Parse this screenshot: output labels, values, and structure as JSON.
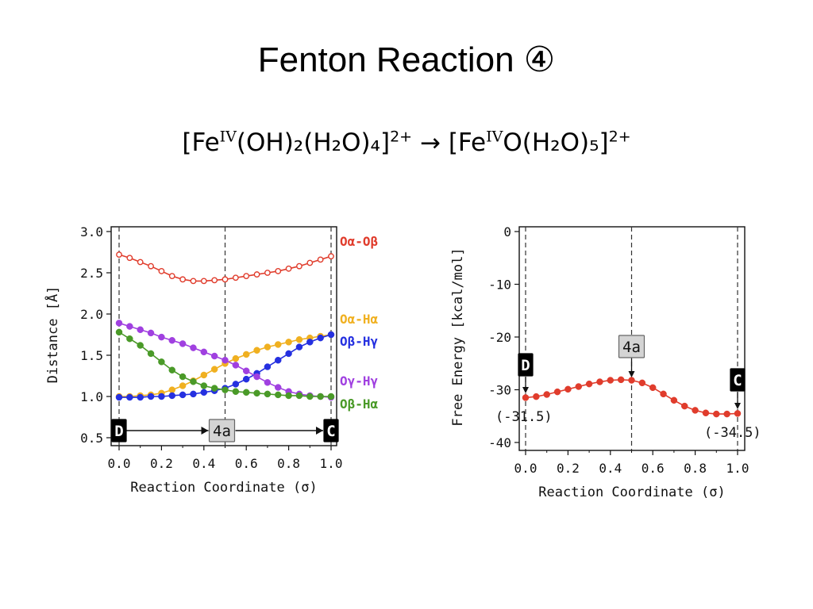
{
  "slide": {
    "title": "Fenton Reaction ④",
    "reaction": {
      "reactant": {
        "pre": "[Fe",
        "ox": "IV",
        "mid": "(OH)₂(H₂O)₄]",
        "charge": "2+"
      },
      "arrow": "→",
      "product": {
        "pre": "[Fe",
        "ox": "IV",
        "mid": "O(H₂O)₅]",
        "charge": "2+"
      }
    }
  },
  "chart_data": [
    {
      "type": "line",
      "xlabel": "Reaction Coordinate (σ)",
      "ylabel": "Distance [Å]",
      "xlim": [
        0,
        1
      ],
      "ylim": [
        0.5,
        3.0
      ],
      "x_ticks": [
        "0.0",
        "0.2",
        "0.4",
        "0.6",
        "0.8",
        "1.0"
      ],
      "y_ticks": [
        "0.5",
        "1.0",
        "1.5",
        "2.0",
        "2.5",
        "3.0"
      ],
      "grid": false,
      "legend": "right",
      "x": [
        0,
        0.05,
        0.1,
        0.15,
        0.2,
        0.25,
        0.3,
        0.35,
        0.4,
        0.45,
        0.5,
        0.55,
        0.6,
        0.65,
        0.7,
        0.75,
        0.8,
        0.85,
        0.9,
        0.95,
        1.0
      ],
      "series": [
        {
          "name": "Oα-Oβ",
          "color": "#e03c2c",
          "marker": "open-circle",
          "values": [
            2.72,
            2.68,
            2.63,
            2.58,
            2.52,
            2.46,
            2.42,
            2.4,
            2.4,
            2.41,
            2.42,
            2.44,
            2.46,
            2.48,
            2.5,
            2.52,
            2.55,
            2.58,
            2.62,
            2.66,
            2.7
          ]
        },
        {
          "name": "Oα-Hα",
          "color": "#f0b020",
          "marker": "filled-circle",
          "values": [
            1.0,
            1.0,
            1.01,
            1.02,
            1.04,
            1.08,
            1.13,
            1.19,
            1.26,
            1.33,
            1.4,
            1.46,
            1.51,
            1.56,
            1.6,
            1.63,
            1.66,
            1.69,
            1.71,
            1.73,
            1.75
          ]
        },
        {
          "name": "Oβ-Hγ",
          "color": "#2530e0",
          "marker": "filled-circle",
          "values": [
            0.99,
            0.99,
            0.99,
            1.0,
            1.0,
            1.01,
            1.02,
            1.03,
            1.05,
            1.07,
            1.1,
            1.15,
            1.21,
            1.28,
            1.36,
            1.44,
            1.52,
            1.6,
            1.66,
            1.71,
            1.75
          ]
        },
        {
          "name": "Oγ-Hγ",
          "color": "#a040e0",
          "marker": "filled-circle",
          "values": [
            1.89,
            1.85,
            1.81,
            1.77,
            1.72,
            1.68,
            1.64,
            1.59,
            1.54,
            1.49,
            1.44,
            1.38,
            1.31,
            1.24,
            1.17,
            1.11,
            1.06,
            1.03,
            1.01,
            1.0,
            0.99
          ]
        },
        {
          "name": "Oβ-Hα",
          "color": "#4a9a28",
          "marker": "filled-circle",
          "values": [
            1.78,
            1.7,
            1.62,
            1.52,
            1.42,
            1.32,
            1.24,
            1.18,
            1.13,
            1.1,
            1.08,
            1.06,
            1.05,
            1.04,
            1.03,
            1.02,
            1.01,
            1.01,
            1.0,
            1.0,
            1.0
          ]
        }
      ],
      "markers": [
        {
          "label": "D",
          "x": 0.0,
          "style": "black"
        },
        {
          "label": "4a",
          "x": 0.5,
          "style": "gray"
        },
        {
          "label": "C",
          "x": 1.0,
          "style": "black"
        }
      ]
    },
    {
      "type": "line",
      "xlabel": "Reaction Coordinate (σ)",
      "ylabel": "Free Energy [kcal/mol]",
      "xlim": [
        0,
        1
      ],
      "ylim": [
        -40,
        0
      ],
      "x_ticks": [
        "0.0",
        "0.2",
        "0.4",
        "0.6",
        "0.8",
        "1.0"
      ],
      "y_ticks": [
        "0",
        "-10",
        "-20",
        "-30",
        "-40"
      ],
      "grid": false,
      "x": [
        0,
        0.05,
        0.1,
        0.15,
        0.2,
        0.25,
        0.3,
        0.35,
        0.4,
        0.45,
        0.5,
        0.55,
        0.6,
        0.65,
        0.7,
        0.75,
        0.8,
        0.85,
        0.9,
        0.95,
        1.0
      ],
      "series": [
        {
          "color": "#e03c2c",
          "marker": "filled-circle",
          "values": [
            -31.5,
            -31.3,
            -30.9,
            -30.4,
            -29.9,
            -29.4,
            -28.9,
            -28.5,
            -28.2,
            -28.1,
            -28.2,
            -28.7,
            -29.6,
            -30.8,
            -32.0,
            -33.1,
            -33.9,
            -34.4,
            -34.6,
            -34.6,
            -34.5
          ]
        }
      ],
      "markers": [
        {
          "label": "D",
          "x": 0.0,
          "style": "black"
        },
        {
          "label": "4a",
          "x": 0.5,
          "style": "gray"
        },
        {
          "label": "C",
          "x": 1.0,
          "style": "black"
        }
      ],
      "annotations": [
        {
          "text": "(-31.5)",
          "x": 0.0,
          "y": -31.5
        },
        {
          "text": "(-34.5)",
          "x": 1.0,
          "y": -34.5
        }
      ]
    }
  ]
}
